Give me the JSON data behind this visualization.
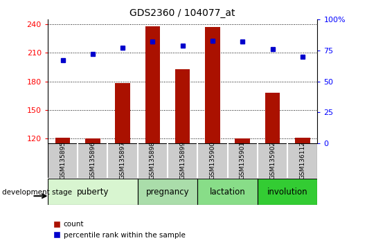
{
  "title": "GDS2360 / 104077_at",
  "samples": [
    "GSM135895",
    "GSM135896",
    "GSM135897",
    "GSM135898",
    "GSM135899",
    "GSM135900",
    "GSM135901",
    "GSM135902",
    "GSM136112"
  ],
  "counts": [
    121,
    120,
    178,
    238,
    193,
    237,
    120,
    168,
    121
  ],
  "percentiles": [
    67,
    72,
    77,
    82,
    79,
    83,
    82,
    76,
    70
  ],
  "stages": [
    {
      "label": "puberty",
      "start": 0,
      "end": 3,
      "color": "#d8f5d0"
    },
    {
      "label": "pregnancy",
      "start": 3,
      "end": 5,
      "color": "#aaddaa"
    },
    {
      "label": "lactation",
      "start": 5,
      "end": 7,
      "color": "#88dd88"
    },
    {
      "label": "involution",
      "start": 7,
      "end": 9,
      "color": "#33cc33"
    }
  ],
  "ylim_left": [
    115,
    245
  ],
  "ylim_right": [
    0,
    100
  ],
  "yticks_left": [
    120,
    150,
    180,
    210,
    240
  ],
  "yticks_right": [
    0,
    25,
    50,
    75,
    100
  ],
  "bar_color": "#aa1100",
  "dot_color": "#0000cc",
  "background_color": "#ffffff"
}
